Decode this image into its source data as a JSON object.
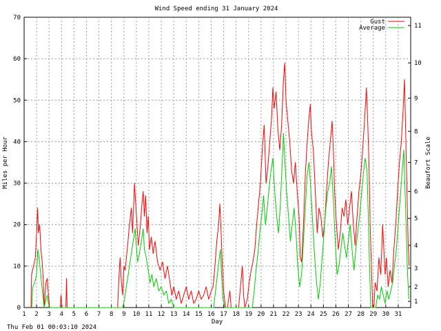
{
  "chart_data": {
    "type": "line",
    "title": "Wind Speed ending 31 January 2024",
    "xlabel": "Day",
    "ylabel": "Miles per Hour",
    "y2label": "Beaufort Scale",
    "footer": "Thu Feb 01 00:03:10 2024",
    "xlim": [
      1,
      32
    ],
    "ylim": [
      0,
      70
    ],
    "x_ticks": [
      "1",
      "2",
      "3",
      "4",
      "5",
      "6",
      "7",
      "8",
      "9",
      "10",
      "11",
      "12",
      "13",
      "14",
      "15",
      "16",
      "17",
      "18",
      "19",
      "20",
      "21",
      "22",
      "23",
      "24",
      "25",
      "26",
      "27",
      "28",
      "29",
      "30",
      "31"
    ],
    "y_ticks": [
      "0",
      "10",
      "20",
      "30",
      "40",
      "50",
      "60",
      "70"
    ],
    "y2_ticks": [
      "1",
      "2",
      "3",
      "4",
      "5",
      "6",
      "7",
      "8",
      "9",
      "10",
      "11"
    ],
    "y2_tick_mph": [
      1.5,
      5,
      9.5,
      15,
      21.5,
      28,
      35,
      42.5,
      50.5,
      59,
      68
    ],
    "grid": true,
    "legend_position": "top-right",
    "series": [
      {
        "name": "Gust",
        "color": "#ff0000",
        "points": [
          [
            1.55,
            0
          ],
          [
            1.6,
            8
          ],
          [
            1.75,
            10
          ],
          [
            1.9,
            12
          ],
          [
            2.0,
            18
          ],
          [
            2.08,
            24
          ],
          [
            2.15,
            18
          ],
          [
            2.25,
            20
          ],
          [
            2.35,
            14
          ],
          [
            2.45,
            11
          ],
          [
            2.55,
            6
          ],
          [
            2.6,
            0
          ],
          [
            2.75,
            6
          ],
          [
            2.85,
            7
          ],
          [
            2.95,
            3
          ],
          [
            3.05,
            0
          ],
          [
            3.9,
            0
          ],
          [
            3.95,
            3
          ],
          [
            4.05,
            0
          ],
          [
            4.35,
            0
          ],
          [
            4.4,
            7
          ],
          [
            4.45,
            0
          ],
          [
            8.5,
            0
          ],
          [
            8.6,
            7
          ],
          [
            8.7,
            12
          ],
          [
            8.8,
            6
          ],
          [
            8.9,
            3
          ],
          [
            9.0,
            10
          ],
          [
            9.1,
            9
          ],
          [
            9.3,
            15
          ],
          [
            9.45,
            20
          ],
          [
            9.6,
            24
          ],
          [
            9.7,
            18
          ],
          [
            9.85,
            30
          ],
          [
            9.95,
            25
          ],
          [
            10.05,
            20
          ],
          [
            10.15,
            15
          ],
          [
            10.3,
            19
          ],
          [
            10.45,
            25
          ],
          [
            10.55,
            28
          ],
          [
            10.65,
            22
          ],
          [
            10.75,
            27
          ],
          [
            10.85,
            18
          ],
          [
            10.95,
            22
          ],
          [
            11.05,
            14
          ],
          [
            11.2,
            17
          ],
          [
            11.35,
            13
          ],
          [
            11.5,
            16
          ],
          [
            11.7,
            11
          ],
          [
            11.9,
            9
          ],
          [
            12.1,
            11
          ],
          [
            12.3,
            7
          ],
          [
            12.5,
            10
          ],
          [
            12.7,
            6
          ],
          [
            12.85,
            3
          ],
          [
            13.0,
            5
          ],
          [
            13.2,
            2
          ],
          [
            13.4,
            4
          ],
          [
            13.6,
            1
          ],
          [
            13.8,
            3
          ],
          [
            14.0,
            5
          ],
          [
            14.2,
            2
          ],
          [
            14.4,
            4
          ],
          [
            14.6,
            1
          ],
          [
            14.8,
            2
          ],
          [
            15.0,
            4
          ],
          [
            15.2,
            2
          ],
          [
            15.4,
            3
          ],
          [
            15.6,
            5
          ],
          [
            15.8,
            2
          ],
          [
            16.0,
            4
          ],
          [
            16.15,
            5
          ],
          [
            16.3,
            10
          ],
          [
            16.45,
            16
          ],
          [
            16.6,
            20
          ],
          [
            16.7,
            25
          ],
          [
            16.8,
            18
          ],
          [
            16.9,
            10
          ],
          [
            17.0,
            4
          ],
          [
            17.15,
            0
          ],
          [
            17.3,
            0
          ],
          [
            17.5,
            4
          ],
          [
            17.6,
            0
          ],
          [
            18.2,
            0
          ],
          [
            18.35,
            5
          ],
          [
            18.5,
            10
          ],
          [
            18.6,
            3
          ],
          [
            18.7,
            0
          ],
          [
            18.9,
            2
          ],
          [
            19.05,
            6
          ],
          [
            19.2,
            9
          ],
          [
            19.35,
            11
          ],
          [
            19.5,
            14
          ],
          [
            19.65,
            20
          ],
          [
            19.8,
            25
          ],
          [
            19.95,
            30
          ],
          [
            20.1,
            38
          ],
          [
            20.25,
            44
          ],
          [
            20.4,
            30
          ],
          [
            20.55,
            34
          ],
          [
            20.7,
            40
          ],
          [
            20.85,
            46
          ],
          [
            20.95,
            53
          ],
          [
            21.05,
            48
          ],
          [
            21.2,
            52
          ],
          [
            21.35,
            43
          ],
          [
            21.5,
            38
          ],
          [
            21.65,
            44
          ],
          [
            21.8,
            55
          ],
          [
            21.9,
            59
          ],
          [
            22.0,
            50
          ],
          [
            22.15,
            45
          ],
          [
            22.3,
            40
          ],
          [
            22.45,
            33
          ],
          [
            22.6,
            30
          ],
          [
            22.75,
            35
          ],
          [
            22.9,
            28
          ],
          [
            23.05,
            22
          ],
          [
            23.15,
            12
          ],
          [
            23.25,
            11
          ],
          [
            23.4,
            20
          ],
          [
            23.55,
            32
          ],
          [
            23.7,
            40
          ],
          [
            23.85,
            46
          ],
          [
            23.95,
            49
          ],
          [
            24.05,
            42
          ],
          [
            24.2,
            38
          ],
          [
            24.35,
            28
          ],
          [
            24.5,
            18
          ],
          [
            24.65,
            24
          ],
          [
            24.8,
            22
          ],
          [
            24.95,
            17
          ],
          [
            25.1,
            20
          ],
          [
            25.25,
            28
          ],
          [
            25.4,
            35
          ],
          [
            25.55,
            40
          ],
          [
            25.7,
            45
          ],
          [
            25.8,
            38
          ],
          [
            25.9,
            28
          ],
          [
            26.05,
            20
          ],
          [
            26.2,
            14
          ],
          [
            26.35,
            18
          ],
          [
            26.5,
            24
          ],
          [
            26.65,
            22
          ],
          [
            26.8,
            26
          ],
          [
            26.95,
            20
          ],
          [
            27.1,
            24
          ],
          [
            27.25,
            28
          ],
          [
            27.4,
            20
          ],
          [
            27.55,
            15
          ],
          [
            27.7,
            22
          ],
          [
            27.85,
            28
          ],
          [
            28.0,
            32
          ],
          [
            28.15,
            38
          ],
          [
            28.3,
            45
          ],
          [
            28.45,
            53
          ],
          [
            28.55,
            45
          ],
          [
            28.65,
            35
          ],
          [
            28.75,
            20
          ],
          [
            28.85,
            10
          ],
          [
            28.95,
            0
          ],
          [
            29.05,
            0
          ],
          [
            29.15,
            6
          ],
          [
            29.3,
            4
          ],
          [
            29.45,
            12
          ],
          [
            29.6,
            8
          ],
          [
            29.75,
            20
          ],
          [
            29.85,
            14
          ],
          [
            29.95,
            8
          ],
          [
            30.05,
            12
          ],
          [
            30.2,
            5
          ],
          [
            30.35,
            9
          ],
          [
            30.5,
            6
          ],
          [
            30.65,
            14
          ],
          [
            30.8,
            20
          ],
          [
            30.95,
            28
          ],
          [
            31.1,
            35
          ],
          [
            31.25,
            40
          ],
          [
            31.4,
            48
          ],
          [
            31.5,
            55
          ],
          [
            31.6,
            42
          ],
          [
            31.7,
            28
          ],
          [
            31.8,
            15
          ],
          [
            31.88,
            10
          ]
        ]
      },
      {
        "name": "Average",
        "color": "#00cc00",
        "points": [
          [
            1.6,
            0
          ],
          [
            1.7,
            5
          ],
          [
            1.85,
            6
          ],
          [
            2.0,
            8
          ],
          [
            2.1,
            14
          ],
          [
            2.2,
            12
          ],
          [
            2.3,
            9
          ],
          [
            2.4,
            6
          ],
          [
            2.5,
            3
          ],
          [
            2.6,
            0
          ],
          [
            2.75,
            2
          ],
          [
            2.85,
            3
          ],
          [
            2.95,
            1
          ],
          [
            3.05,
            0
          ],
          [
            8.9,
            0
          ],
          [
            9.05,
            2
          ],
          [
            9.2,
            5
          ],
          [
            9.35,
            8
          ],
          [
            9.5,
            11
          ],
          [
            9.65,
            14
          ],
          [
            9.8,
            17
          ],
          [
            9.9,
            19
          ],
          [
            10.0,
            15
          ],
          [
            10.1,
            11
          ],
          [
            10.25,
            13
          ],
          [
            10.4,
            16
          ],
          [
            10.55,
            19
          ],
          [
            10.65,
            14
          ],
          [
            10.8,
            12
          ],
          [
            10.95,
            9
          ],
          [
            11.1,
            6
          ],
          [
            11.25,
            8
          ],
          [
            11.4,
            5
          ],
          [
            11.6,
            7
          ],
          [
            11.8,
            4
          ],
          [
            12.0,
            5
          ],
          [
            12.2,
            3
          ],
          [
            12.4,
            4
          ],
          [
            12.6,
            1
          ],
          [
            12.8,
            2
          ],
          [
            13.0,
            0
          ],
          [
            16.2,
            0
          ],
          [
            16.35,
            4
          ],
          [
            16.5,
            8
          ],
          [
            16.65,
            12
          ],
          [
            16.75,
            14
          ],
          [
            16.85,
            7
          ],
          [
            16.95,
            2
          ],
          [
            17.1,
            0
          ],
          [
            19.3,
            0
          ],
          [
            19.45,
            4
          ],
          [
            19.6,
            9
          ],
          [
            19.75,
            13
          ],
          [
            19.9,
            18
          ],
          [
            20.05,
            22
          ],
          [
            20.2,
            27
          ],
          [
            20.35,
            20
          ],
          [
            20.5,
            24
          ],
          [
            20.65,
            29
          ],
          [
            20.8,
            33
          ],
          [
            20.95,
            36
          ],
          [
            21.1,
            28
          ],
          [
            21.25,
            22
          ],
          [
            21.4,
            18
          ],
          [
            21.55,
            25
          ],
          [
            21.7,
            35
          ],
          [
            21.8,
            42
          ],
          [
            21.9,
            36
          ],
          [
            22.05,
            28
          ],
          [
            22.2,
            22
          ],
          [
            22.35,
            16
          ],
          [
            22.5,
            20
          ],
          [
            22.65,
            24
          ],
          [
            22.8,
            18
          ],
          [
            22.95,
            10
          ],
          [
            23.1,
            5
          ],
          [
            23.25,
            8
          ],
          [
            23.4,
            16
          ],
          [
            23.55,
            24
          ],
          [
            23.7,
            32
          ],
          [
            23.85,
            35
          ],
          [
            24.0,
            28
          ],
          [
            24.15,
            20
          ],
          [
            24.3,
            12
          ],
          [
            24.45,
            6
          ],
          [
            24.6,
            2
          ],
          [
            24.75,
            6
          ],
          [
            24.9,
            12
          ],
          [
            25.05,
            18
          ],
          [
            25.2,
            24
          ],
          [
            25.35,
            28
          ],
          [
            25.5,
            30
          ],
          [
            25.65,
            34
          ],
          [
            25.8,
            26
          ],
          [
            25.95,
            16
          ],
          [
            26.1,
            8
          ],
          [
            26.25,
            10
          ],
          [
            26.4,
            14
          ],
          [
            26.55,
            18
          ],
          [
            26.7,
            15
          ],
          [
            26.85,
            12
          ],
          [
            27.0,
            16
          ],
          [
            27.15,
            20
          ],
          [
            27.3,
            14
          ],
          [
            27.45,
            9
          ],
          [
            27.6,
            14
          ],
          [
            27.75,
            18
          ],
          [
            27.9,
            22
          ],
          [
            28.05,
            27
          ],
          [
            28.2,
            32
          ],
          [
            28.35,
            36
          ],
          [
            28.5,
            33
          ],
          [
            28.6,
            22
          ],
          [
            28.7,
            10
          ],
          [
            28.8,
            0
          ],
          [
            29.2,
            0
          ],
          [
            29.35,
            3
          ],
          [
            29.5,
            2
          ],
          [
            29.65,
            5
          ],
          [
            29.8,
            3
          ],
          [
            29.95,
            1
          ],
          [
            30.1,
            4
          ],
          [
            30.25,
            2
          ],
          [
            30.4,
            4
          ],
          [
            30.55,
            6
          ],
          [
            30.7,
            10
          ],
          [
            30.85,
            14
          ],
          [
            31.0,
            20
          ],
          [
            31.15,
            26
          ],
          [
            31.3,
            32
          ],
          [
            31.45,
            38
          ],
          [
            31.55,
            28
          ],
          [
            31.65,
            18
          ],
          [
            31.75,
            8
          ],
          [
            31.85,
            2
          ]
        ]
      }
    ]
  }
}
